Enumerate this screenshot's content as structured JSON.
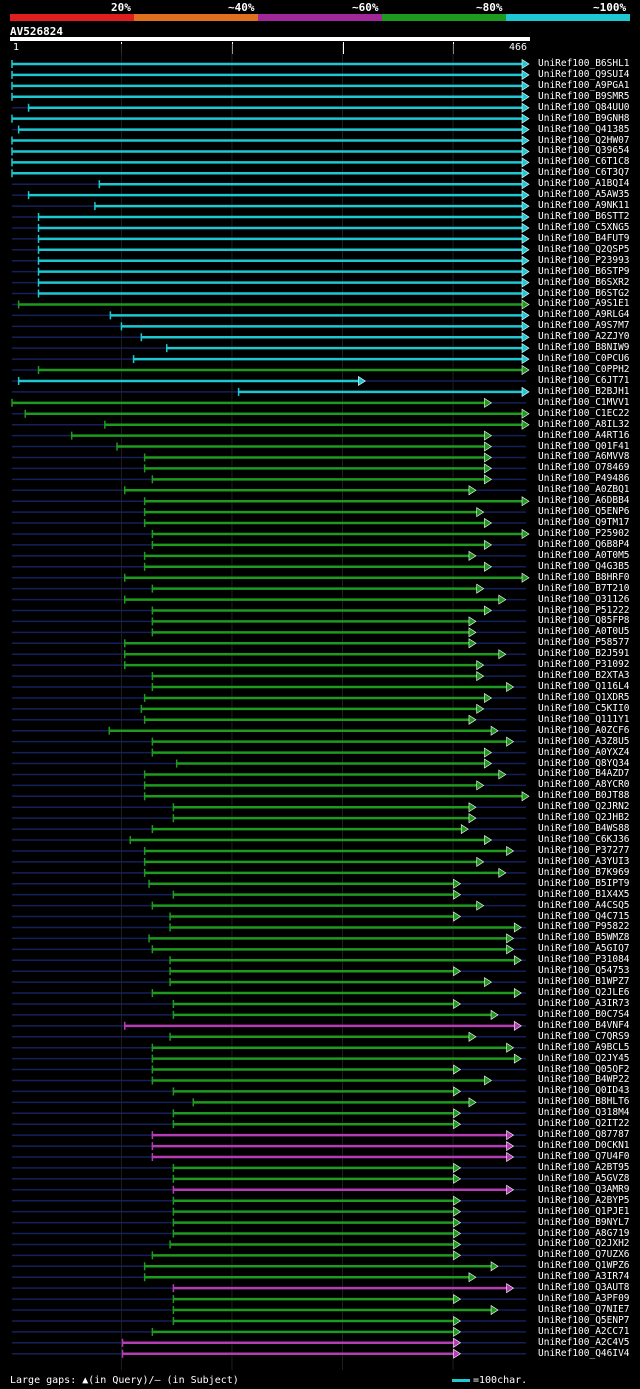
{
  "legend": {
    "labels": [
      "20%",
      "~40%",
      "~60%",
      "~80%",
      "~100%"
    ],
    "colors": [
      "#e01e1e",
      "#e07020",
      "#a0289a",
      "#1e9a1e",
      "#1ec8d2"
    ]
  },
  "query": {
    "id": "AV526824",
    "start": "1",
    "end": "466",
    "length": 466
  },
  "hits": [
    {
      "name": "UniRef100_B6SHL1",
      "start": 1,
      "end": 466,
      "c": "cyan"
    },
    {
      "name": "UniRef100_Q9SUI4",
      "start": 1,
      "end": 466,
      "c": "cyan"
    },
    {
      "name": "UniRef100_A9PGA1",
      "start": 1,
      "end": 466,
      "c": "cyan"
    },
    {
      "name": "UniRef100_B9SMR5",
      "start": 1,
      "end": 466,
      "c": "cyan"
    },
    {
      "name": "UniRef100_Q84UU0",
      "start": 16,
      "end": 466,
      "c": "cyan"
    },
    {
      "name": "UniRef100_B9GNH8",
      "start": 1,
      "end": 466,
      "c": "cyan"
    },
    {
      "name": "UniRef100_Q41385",
      "start": 7,
      "end": 466,
      "c": "cyan"
    },
    {
      "name": "UniRef100_Q2HW07",
      "start": 1,
      "end": 466,
      "c": "cyan"
    },
    {
      "name": "UniRef100_Q39654",
      "start": 1,
      "end": 466,
      "c": "cyan"
    },
    {
      "name": "UniRef100_C6T1C8",
      "start": 1,
      "end": 466,
      "c": "cyan"
    },
    {
      "name": "UniRef100_C6T3Q7",
      "start": 1,
      "end": 466,
      "c": "cyan"
    },
    {
      "name": "UniRef100_A1BQI4",
      "start": 80,
      "end": 466,
      "c": "cyan"
    },
    {
      "name": "UniRef100_A5AW35",
      "start": 16,
      "end": 466,
      "c": "cyan"
    },
    {
      "name": "UniRef100_A9NK11",
      "start": 76,
      "end": 466,
      "c": "cyan"
    },
    {
      "name": "UniRef100_B6STT2",
      "start": 25,
      "end": 466,
      "c": "cyan"
    },
    {
      "name": "UniRef100_C5XNG5",
      "start": 25,
      "end": 466,
      "c": "cyan"
    },
    {
      "name": "UniRef100_B4FUT9",
      "start": 25,
      "end": 466,
      "c": "cyan"
    },
    {
      "name": "UniRef100_Q2QSP5",
      "start": 25,
      "end": 466,
      "c": "cyan"
    },
    {
      "name": "UniRef100_P23993",
      "start": 25,
      "end": 466,
      "c": "cyan"
    },
    {
      "name": "UniRef100_B6STP9",
      "start": 25,
      "end": 466,
      "c": "cyan"
    },
    {
      "name": "UniRef100_B6SXR2",
      "start": 25,
      "end": 466,
      "c": "cyan"
    },
    {
      "name": "UniRef100_B6STG2",
      "start": 25,
      "end": 466,
      "c": "cyan"
    },
    {
      "name": "UniRef100_A9S1E1",
      "start": 7,
      "end": 466,
      "c": "green"
    },
    {
      "name": "UniRef100_A9RLG4",
      "start": 90,
      "end": 466,
      "c": "cyan"
    },
    {
      "name": "UniRef100_A9S7M7",
      "start": 100,
      "end": 466,
      "c": "cyan"
    },
    {
      "name": "UniRef100_A2ZJY0",
      "start": 118,
      "end": 466,
      "c": "cyan"
    },
    {
      "name": "UniRef100_B8NIW9",
      "start": 141,
      "end": 466,
      "c": "cyan"
    },
    {
      "name": "UniRef100_C0PCU6",
      "start": 111,
      "end": 466,
      "c": "cyan"
    },
    {
      "name": "UniRef100_C0PPH2",
      "start": 25,
      "end": 466,
      "c": "green"
    },
    {
      "name": "UniRef100_C6JT71",
      "start": 7,
      "end": 318,
      "c": "cyan"
    },
    {
      "name": "UniRef100_B2BJH1",
      "start": 206,
      "end": 466,
      "c": "cyan"
    },
    {
      "name": "UniRef100_C1MVV1",
      "start": 1,
      "end": 432,
      "c": "green"
    },
    {
      "name": "UniRef100_C1EC22",
      "start": 13,
      "end": 466,
      "c": "green"
    },
    {
      "name": "UniRef100_A8IL32",
      "start": 85,
      "end": 466,
      "c": "green"
    },
    {
      "name": "UniRef100_A4RT16",
      "start": 55,
      "end": 432,
      "c": "green"
    },
    {
      "name": "UniRef100_Q01F41",
      "start": 96,
      "end": 432,
      "c": "green"
    },
    {
      "name": "UniRef100_A6MVV8",
      "start": 121,
      "end": 432,
      "c": "green"
    },
    {
      "name": "UniRef100_O78469",
      "start": 121,
      "end": 432,
      "c": "green"
    },
    {
      "name": "UniRef100_P49486",
      "start": 128,
      "end": 432,
      "c": "green"
    },
    {
      "name": "UniRef100_A0ZBQ1",
      "start": 103,
      "end": 418,
      "c": "green"
    },
    {
      "name": "UniRef100_A6DBB4",
      "start": 121,
      "end": 466,
      "c": "green"
    },
    {
      "name": "UniRef100_Q5ENP6",
      "start": 121,
      "end": 425,
      "c": "green"
    },
    {
      "name": "UniRef100_Q9TM17",
      "start": 121,
      "end": 432,
      "c": "green"
    },
    {
      "name": "UniRef100_P25902",
      "start": 128,
      "end": 466,
      "c": "green"
    },
    {
      "name": "UniRef100_Q6B8P4",
      "start": 128,
      "end": 432,
      "c": "green"
    },
    {
      "name": "UniRef100_A0T0M5",
      "start": 121,
      "end": 418,
      "c": "green"
    },
    {
      "name": "UniRef100_Q4G3B5",
      "start": 121,
      "end": 432,
      "c": "green"
    },
    {
      "name": "UniRef100_B8HRF0",
      "start": 103,
      "end": 466,
      "c": "green"
    },
    {
      "name": "UniRef100_B7T210",
      "start": 128,
      "end": 425,
      "c": "green"
    },
    {
      "name": "UniRef100_O31126",
      "start": 103,
      "end": 445,
      "c": "green"
    },
    {
      "name": "UniRef100_P51222",
      "start": 128,
      "end": 432,
      "c": "green"
    },
    {
      "name": "UniRef100_Q85FP8",
      "start": 128,
      "end": 418,
      "c": "green"
    },
    {
      "name": "UniRef100_A0T0U5",
      "start": 128,
      "end": 418,
      "c": "green"
    },
    {
      "name": "UniRef100_P58577",
      "start": 103,
      "end": 418,
      "c": "green"
    },
    {
      "name": "UniRef100_B2J591",
      "start": 103,
      "end": 445,
      "c": "green"
    },
    {
      "name": "UniRef100_P31092",
      "start": 103,
      "end": 425,
      "c": "green"
    },
    {
      "name": "UniRef100_B2XTA3",
      "start": 128,
      "end": 425,
      "c": "green"
    },
    {
      "name": "UniRef100_Q116L4",
      "start": 128,
      "end": 452,
      "c": "green"
    },
    {
      "name": "UniRef100_Q1XDR5",
      "start": 121,
      "end": 432,
      "c": "green"
    },
    {
      "name": "UniRef100_C5KII0",
      "start": 118,
      "end": 425,
      "c": "green"
    },
    {
      "name": "UniRef100_Q111Y1",
      "start": 121,
      "end": 418,
      "c": "green"
    },
    {
      "name": "UniRef100_A0ZCF6",
      "start": 89,
      "end": 438,
      "c": "green"
    },
    {
      "name": "UniRef100_A3Z8U5",
      "start": 128,
      "end": 452,
      "c": "green"
    },
    {
      "name": "UniRef100_A0YXZ4",
      "start": 128,
      "end": 432,
      "c": "green"
    },
    {
      "name": "UniRef100_Q8YQ34",
      "start": 150,
      "end": 432,
      "c": "green"
    },
    {
      "name": "UniRef100_B4AZD7",
      "start": 121,
      "end": 445,
      "c": "green"
    },
    {
      "name": "UniRef100_A8YCR0",
      "start": 121,
      "end": 425,
      "c": "green"
    },
    {
      "name": "UniRef100_B0JT88",
      "start": 121,
      "end": 466,
      "c": "green"
    },
    {
      "name": "UniRef100_Q2JRN2",
      "start": 147,
      "end": 418,
      "c": "green"
    },
    {
      "name": "UniRef100_Q2JHB2",
      "start": 147,
      "end": 418,
      "c": "green"
    },
    {
      "name": "UniRef100_B4WS88",
      "start": 128,
      "end": 411,
      "c": "green"
    },
    {
      "name": "UniRef100_C6KJ36",
      "start": 108,
      "end": 432,
      "c": "green"
    },
    {
      "name": "UniRef100_P37277",
      "start": 121,
      "end": 452,
      "c": "green"
    },
    {
      "name": "UniRef100_A3YUI3",
      "start": 121,
      "end": 425,
      "c": "green"
    },
    {
      "name": "UniRef100_B7K969",
      "start": 121,
      "end": 445,
      "c": "green"
    },
    {
      "name": "UniRef100_B5IPT9",
      "start": 125,
      "end": 404,
      "c": "green"
    },
    {
      "name": "UniRef100_B1X4X5",
      "start": 147,
      "end": 404,
      "c": "green"
    },
    {
      "name": "UniRef100_A4CSQ5",
      "start": 128,
      "end": 425,
      "c": "green"
    },
    {
      "name": "UniRef100_Q4C715",
      "start": 144,
      "end": 404,
      "c": "green"
    },
    {
      "name": "UniRef100_P95822",
      "start": 144,
      "end": 459,
      "c": "green"
    },
    {
      "name": "UniRef100_B5WMZ8",
      "start": 125,
      "end": 452,
      "c": "green"
    },
    {
      "name": "UniRef100_A5GIQ7",
      "start": 128,
      "end": 452,
      "c": "green"
    },
    {
      "name": "UniRef100_P31084",
      "start": 144,
      "end": 459,
      "c": "green"
    },
    {
      "name": "UniRef100_Q54753",
      "start": 144,
      "end": 404,
      "c": "green"
    },
    {
      "name": "UniRef100_B1WPZ7",
      "start": 144,
      "end": 432,
      "c": "green"
    },
    {
      "name": "UniRef100_Q2JLE6",
      "start": 128,
      "end": 459,
      "c": "green"
    },
    {
      "name": "UniRef100_A3IR73",
      "start": 147,
      "end": 404,
      "c": "green"
    },
    {
      "name": "UniRef100_B0C7S4",
      "start": 147,
      "end": 438,
      "c": "green"
    },
    {
      "name": "UniRef100_B4VNF4",
      "start": 103,
      "end": 459,
      "c": "magenta"
    },
    {
      "name": "UniRef100_C7QRS9",
      "start": 144,
      "end": 418,
      "c": "green"
    },
    {
      "name": "UniRef100_A9BCL5",
      "start": 128,
      "end": 452,
      "c": "green"
    },
    {
      "name": "UniRef100_Q2JY45",
      "start": 128,
      "end": 459,
      "c": "green"
    },
    {
      "name": "UniRef100_Q05QF2",
      "start": 128,
      "end": 404,
      "c": "green"
    },
    {
      "name": "UniRef100_B4WP22",
      "start": 128,
      "end": 432,
      "c": "green"
    },
    {
      "name": "UniRef100_Q0ID43",
      "start": 147,
      "end": 404,
      "c": "green"
    },
    {
      "name": "UniRef100_B8HLT6",
      "start": 165,
      "end": 418,
      "c": "green"
    },
    {
      "name": "UniRef100_Q318M4",
      "start": 147,
      "end": 404,
      "c": "green"
    },
    {
      "name": "UniRef100_Q2IT22",
      "start": 147,
      "end": 404,
      "c": "green"
    },
    {
      "name": "UniRef100_Q87787",
      "start": 128,
      "end": 452,
      "c": "magenta"
    },
    {
      "name": "UniRef100_D0CKN1",
      "start": 128,
      "end": 452,
      "c": "magenta"
    },
    {
      "name": "UniRef100_Q7U4F0",
      "start": 128,
      "end": 452,
      "c": "magenta"
    },
    {
      "name": "UniRef100_A2BT95",
      "start": 147,
      "end": 404,
      "c": "green"
    },
    {
      "name": "UniRef100_A5GVZ8",
      "start": 147,
      "end": 404,
      "c": "green"
    },
    {
      "name": "UniRef100_Q3AMR9",
      "start": 147,
      "end": 452,
      "c": "magenta"
    },
    {
      "name": "UniRef100_A2BYP5",
      "start": 147,
      "end": 404,
      "c": "green"
    },
    {
      "name": "UniRef100_Q1PJE1",
      "start": 147,
      "end": 404,
      "c": "green"
    },
    {
      "name": "UniRef100_B9NYL7",
      "start": 147,
      "end": 404,
      "c": "green"
    },
    {
      "name": "UniRef100_A8G719",
      "start": 147,
      "end": 404,
      "c": "green"
    },
    {
      "name": "UniRef100_Q2JXH2",
      "start": 144,
      "end": 404,
      "c": "green"
    },
    {
      "name": "UniRef100_Q7UZX6",
      "start": 128,
      "end": 404,
      "c": "green"
    },
    {
      "name": "UniRef100_Q1WPZ6",
      "start": 121,
      "end": 438,
      "c": "green"
    },
    {
      "name": "UniRef100_A3IR74",
      "start": 121,
      "end": 418,
      "c": "green"
    },
    {
      "name": "UniRef100_Q3AUT8",
      "start": 147,
      "end": 452,
      "c": "magenta"
    },
    {
      "name": "UniRef100_A3PF09",
      "start": 147,
      "end": 404,
      "c": "green"
    },
    {
      "name": "UniRef100_Q7NIE7",
      "start": 147,
      "end": 438,
      "c": "green"
    },
    {
      "name": "UniRef100_Q5ENP7",
      "start": 147,
      "end": 404,
      "c": "green"
    },
    {
      "name": "UniRef100_A2CC71",
      "start": 128,
      "end": 404,
      "c": "green"
    },
    {
      "name": "UniRef100_A2C4V5",
      "start": 101,
      "end": 404,
      "c": "magenta"
    },
    {
      "name": "UniRef100_Q46IV4",
      "start": 101,
      "end": 404,
      "c": "magenta"
    }
  ],
  "footer": {
    "gaps_note": "Large gaps: ▲(in Query)/– (in Subject)",
    "scale_label": "=100char."
  }
}
